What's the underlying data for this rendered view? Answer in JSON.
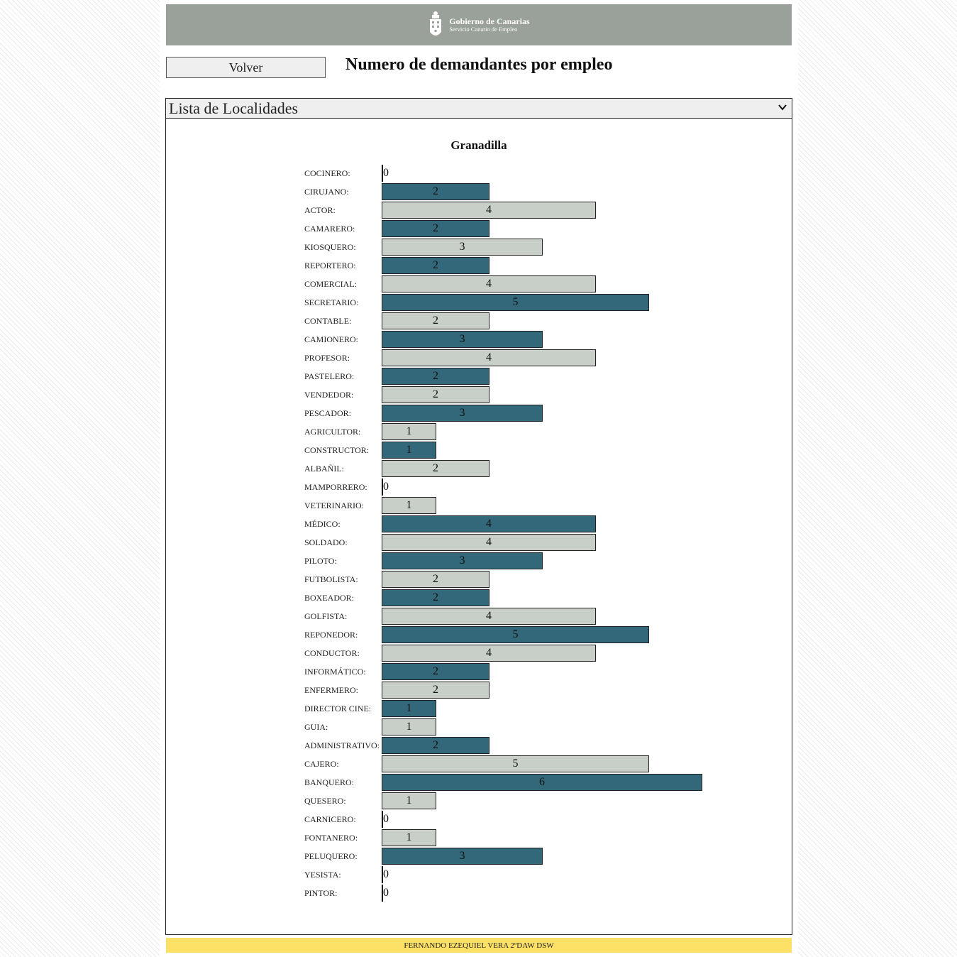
{
  "header": {
    "logo_title": "Gobierno de Canarias",
    "logo_subtitle": "Servicio Canario de Empleo",
    "background": "#9aa09a"
  },
  "toolbar": {
    "back_label": "Volver"
  },
  "page_title": "Numero de demandantes por empleo",
  "locality_select": {
    "selected": "Lista de Localidades"
  },
  "footer": {
    "text": "FERNANDO EZEQUIEL VERA 2ºDAW DSW",
    "background": "#fde066"
  },
  "colors": {
    "dark": "#33687a",
    "light": "#c8cec8"
  },
  "chart_data": {
    "type": "bar",
    "orientation": "horizontal",
    "title": "Granadilla",
    "categories": [
      "COCINERO:",
      "CIRUJANO:",
      "ACTOR:",
      "CAMARERO:",
      "KIOSQUERO:",
      "REPORTERO:",
      "COMERCIAL:",
      "SECRETARIO:",
      "CONTABLE:",
      "CAMIONERO:",
      "PROFESOR:",
      "PASTELERO:",
      "VENDEDOR:",
      "PESCADOR:",
      "AGRICULTOR:",
      "CONSTRUCTOR:",
      "ALBAÑIL:",
      "MAMPORRERO:",
      "VETERINARIO:",
      "MÉDICO:",
      "SOLDADO:",
      "PILOTO:",
      "FUTBOLISTA:",
      "BOXEADOR:",
      "GOLFISTA:",
      "REPONEDOR:",
      "CONDUCTOR:",
      "INFORMÁTICO:",
      "ENFERMERO:",
      "DIRECTOR CINE:",
      "GUIA:",
      "ADMINISTRATIVO:",
      "CAJERO:",
      "BANQUERO:",
      "QUESERO:",
      "CARNICERO:",
      "FONTANERO:",
      "PELUQUERO:",
      "YESISTA:",
      "PINTOR:"
    ],
    "values": [
      0,
      2,
      4,
      2,
      3,
      2,
      4,
      5,
      2,
      3,
      4,
      2,
      2,
      3,
      1,
      1,
      2,
      0,
      1,
      4,
      4,
      3,
      2,
      2,
      4,
      5,
      4,
      2,
      2,
      1,
      1,
      2,
      5,
      6,
      1,
      0,
      1,
      3,
      0,
      0
    ],
    "bar_colors": [
      "dark",
      "dark",
      "light",
      "dark",
      "light",
      "dark",
      "light",
      "dark",
      "light",
      "dark",
      "light",
      "dark",
      "light",
      "dark",
      "light",
      "dark",
      "light",
      "light",
      "light",
      "dark",
      "light",
      "dark",
      "light",
      "dark",
      "light",
      "dark",
      "light",
      "dark",
      "light",
      "dark",
      "light",
      "dark",
      "light",
      "dark",
      "light",
      "light",
      "light",
      "dark",
      "light",
      "light"
    ],
    "xlim": [
      0,
      6
    ],
    "grid": false,
    "legend": "none"
  }
}
